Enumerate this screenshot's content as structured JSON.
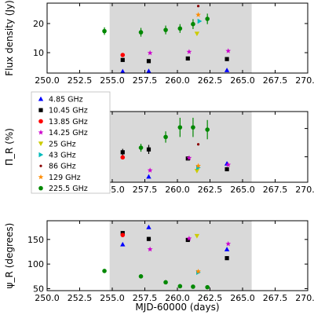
{
  "xlabel": "MJD-60000 (days)",
  "shaded_region": [
    254.8,
    265.7
  ],
  "x_ticks": [
    250.0,
    252.5,
    255.0,
    257.5,
    260.0,
    262.5,
    265.0,
    267.5,
    270.0
  ],
  "chart_data": [
    {
      "type": "scatter",
      "ylabel": "Flux density (Jy)",
      "xlim": [
        250,
        270
      ],
      "ylim": [
        3,
        27
      ],
      "y_ticks": [
        10,
        20
      ],
      "grid": false,
      "series": [
        {
          "name": "4.85 GHz",
          "color": "#0000ff",
          "marker": "triangle",
          "x": [
            255.8,
            257.8,
            263.8
          ],
          "y": [
            3.6,
            3.7,
            4.0
          ]
        },
        {
          "name": "10.45 GHz",
          "color": "#000000",
          "marker": "square",
          "x": [
            255.8,
            257.8,
            260.8,
            263.8
          ],
          "y": [
            7.5,
            7.1,
            8.0,
            7.8
          ]
        },
        {
          "name": "13.85 GHz",
          "color": "#ff0000",
          "marker": "circle",
          "x": [
            255.8
          ],
          "y": [
            9.2
          ]
        },
        {
          "name": "14.25 GHz",
          "color": "#cc00cc",
          "marker": "star",
          "x": [
            257.9,
            260.9,
            263.9
          ],
          "y": [
            9.9,
            10.3,
            10.6
          ]
        },
        {
          "name": "25 GHz",
          "color": "#cccc00",
          "marker": "tri_down",
          "x": [
            261.5
          ],
          "y": [
            16.5
          ]
        },
        {
          "name": "43 GHz",
          "color": "#00bbbb",
          "marker": "tri_right",
          "x": [
            261.7
          ],
          "y": [
            20.8
          ]
        },
        {
          "name": "86 GHz",
          "color": "#8b0000",
          "marker": "dot",
          "x": [
            261.6
          ],
          "y": [
            26.0
          ]
        },
        {
          "name": "129 GHz",
          "color": "#ff8c00",
          "marker": "star",
          "x": [
            261.6
          ],
          "y": [
            23.0
          ]
        },
        {
          "name": "225.5 GHz",
          "color": "#008800",
          "marker": "circle",
          "x": [
            254.4,
            257.2,
            259.1,
            260.2,
            261.2,
            262.3
          ],
          "y": [
            17.4,
            17.0,
            17.8,
            18.3,
            19.8,
            21.6
          ],
          "err": [
            1.3,
            1.5,
            1.5,
            1.5,
            1.7,
            1.8
          ]
        }
      ]
    },
    {
      "type": "scatter",
      "ylabel": "Π_R (%)",
      "xlim": [
        250,
        270
      ],
      "ylim": [
        0.5,
        13
      ],
      "y_ticks": [
        5,
        10
      ],
      "grid": false,
      "legend": "top-left",
      "series": [
        {
          "name": "4.85 GHz",
          "color": "#0000ff",
          "marker": "triangle",
          "x": [
            257.8,
            263.8
          ],
          "y": [
            1.5,
            3.8
          ]
        },
        {
          "name": "10.45 GHz",
          "color": "#000000",
          "marker": "square",
          "x": [
            255.8,
            257.8,
            260.8,
            263.8
          ],
          "y": [
            5.8,
            6.3,
            4.7,
            2.8
          ],
          "err": [
            0.6,
            0.8,
            0.3,
            0.3
          ]
        },
        {
          "name": "13.85 GHz",
          "color": "#ff0000",
          "marker": "circle",
          "x": [
            255.8
          ],
          "y": [
            4.9
          ]
        },
        {
          "name": "14.25 GHz",
          "color": "#cc00cc",
          "marker": "star",
          "x": [
            257.9,
            260.9,
            263.9
          ],
          "y": [
            2.6,
            4.8,
            3.6
          ]
        },
        {
          "name": "25 GHz",
          "color": "#cccc00",
          "marker": "tri_down",
          "x": [
            261.5
          ],
          "y": [
            2.5
          ]
        },
        {
          "name": "43 GHz",
          "color": "#00bbbb",
          "marker": "tri_right",
          "x": [
            261.6
          ],
          "y": [
            3.1
          ]
        },
        {
          "name": "86 GHz",
          "color": "#8b0000",
          "marker": "dot",
          "x": [
            261.6
          ],
          "y": [
            7.2
          ]
        },
        {
          "name": "129 GHz",
          "color": "#ff8c00",
          "marker": "star",
          "x": [
            261.6
          ],
          "y": [
            3.4
          ]
        },
        {
          "name": "225.5 GHz",
          "color": "#008800",
          "marker": "circle",
          "x": [
            257.2,
            259.1,
            260.2,
            261.2,
            262.3
          ],
          "y": [
            6.6,
            8.5,
            10.2,
            10.2,
            9.8
          ],
          "err": [
            0.7,
            1.0,
            1.7,
            1.7,
            1.7
          ]
        }
      ]
    },
    {
      "type": "scatter",
      "ylabel": "ψ_R (degrees)",
      "xlim": [
        250,
        270
      ],
      "ylim": [
        46,
        188
      ],
      "y_ticks": [
        50,
        100,
        150
      ],
      "grid": false,
      "series": [
        {
          "name": "4.85 GHz",
          "color": "#0000ff",
          "marker": "triangle",
          "x": [
            255.8,
            257.8,
            263.8
          ],
          "y": [
            140,
            175,
            130
          ]
        },
        {
          "name": "10.45 GHz",
          "color": "#000000",
          "marker": "square",
          "x": [
            255.8,
            257.8,
            260.8,
            263.8
          ],
          "y": [
            163,
            151,
            149,
            112
          ],
          "err": [
            2,
            4,
            3,
            2
          ]
        },
        {
          "name": "13.85 GHz",
          "color": "#ff0000",
          "marker": "circle",
          "x": [
            255.8
          ],
          "y": [
            159
          ]
        },
        {
          "name": "14.25 GHz",
          "color": "#cc00cc",
          "marker": "star",
          "x": [
            257.9,
            260.9,
            263.9
          ],
          "y": [
            130,
            152,
            141
          ]
        },
        {
          "name": "25 GHz",
          "color": "#cccc00",
          "marker": "tri_down",
          "x": [
            261.5
          ],
          "y": [
            157
          ]
        },
        {
          "name": "43 GHz",
          "color": "#00bbbb",
          "marker": "tri_right",
          "x": [
            261.6
          ],
          "y": [
            83
          ]
        },
        {
          "name": "86 GHz",
          "color": "#8b0000",
          "marker": "dot",
          "x": [
            261.6
          ],
          "y": [
            85
          ]
        },
        {
          "name": "129 GHz",
          "color": "#ff8c00",
          "marker": "star",
          "x": [
            261.6
          ],
          "y": [
            85
          ]
        },
        {
          "name": "225.5 GHz",
          "color": "#008800",
          "marker": "circle",
          "x": [
            254.4,
            257.2,
            259.1,
            260.2,
            261.2,
            262.3
          ],
          "y": [
            86,
            75,
            63,
            55,
            54,
            53
          ]
        }
      ]
    }
  ]
}
